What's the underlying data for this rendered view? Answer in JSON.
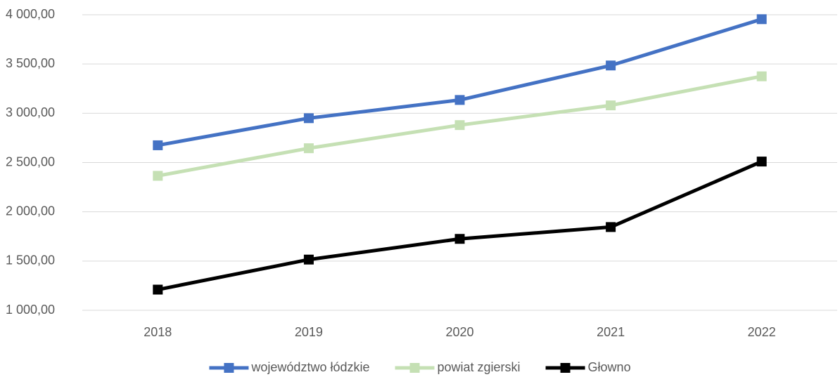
{
  "chart_data": {
    "type": "line",
    "categories": [
      "2018",
      "2019",
      "2020",
      "2021",
      "2022"
    ],
    "series": [
      {
        "name": "województwo łódzkie",
        "color": "#4472c4",
        "values": [
          2675,
          2950,
          3135,
          3485,
          3955
        ]
      },
      {
        "name": "powiat zgierski",
        "color": "#c5e0b4",
        "values": [
          2365,
          2645,
          2880,
          3080,
          3375
        ]
      },
      {
        "name": "Głowno",
        "color": "#000000",
        "values": [
          1210,
          1515,
          1725,
          1845,
          2510
        ]
      }
    ],
    "ylim": [
      1000,
      4000
    ],
    "yticks": [
      {
        "value": 1000,
        "label": "1 000,00"
      },
      {
        "value": 1500,
        "label": "1 500,00"
      },
      {
        "value": 2000,
        "label": "2 000,00"
      },
      {
        "value": 2500,
        "label": "2 500,00"
      },
      {
        "value": 3000,
        "label": "3 000,00"
      },
      {
        "value": 3500,
        "label": "3 500,00"
      },
      {
        "value": 4000,
        "label": "4 000,00"
      }
    ],
    "grid": true,
    "legend": "bottom"
  }
}
